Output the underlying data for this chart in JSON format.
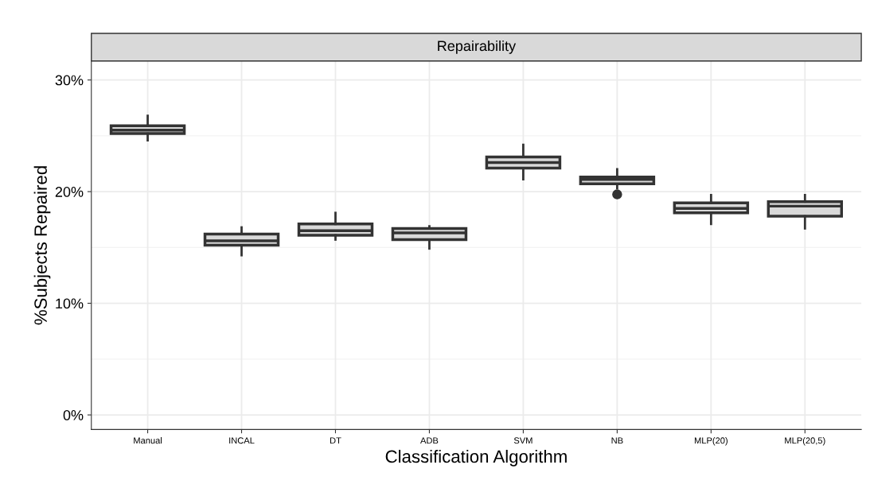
{
  "chart_data": {
    "type": "box",
    "title": "Repairability",
    "xlabel": "Classification Algorithm",
    "ylabel": "%Subjects Repaired",
    "categories": [
      "Manual",
      "INCAL",
      "DT",
      "ADB",
      "SVM",
      "NB",
      "MLP(20)",
      "MLP(20,5)"
    ],
    "boxes": [
      {
        "low": 24.6,
        "q1": 25.2,
        "median": 25.5,
        "q3": 25.9,
        "high": 26.8
      },
      {
        "low": 14.3,
        "q1": 15.2,
        "median": 15.6,
        "q3": 16.2,
        "high": 16.8
      },
      {
        "low": 15.7,
        "q1": 16.1,
        "median": 16.5,
        "q3": 17.1,
        "high": 18.1
      },
      {
        "low": 14.9,
        "q1": 15.7,
        "median": 16.3,
        "q3": 16.7,
        "high": 16.9
      },
      {
        "low": 21.1,
        "q1": 22.1,
        "median": 22.6,
        "q3": 23.1,
        "high": 24.2
      },
      {
        "low": 20.3,
        "q1": 20.7,
        "median": 21.1,
        "q3": 21.3,
        "high": 22.0,
        "outliers": [
          19.75
        ]
      },
      {
        "low": 17.1,
        "q1": 18.1,
        "median": 18.5,
        "q3": 19.0,
        "high": 19.7
      },
      {
        "low": 16.7,
        "q1": 17.8,
        "median": 18.7,
        "q3": 19.1,
        "high": 19.7
      }
    ],
    "color": "#d9d9d9",
    "ylim": [
      -1.3,
      31.7
    ],
    "yticks": [
      {
        "value": 0,
        "label": "0%"
      },
      {
        "value": 10,
        "label": "10%"
      },
      {
        "value": 20,
        "label": "20%"
      },
      {
        "value": 30,
        "label": "30%"
      }
    ],
    "grid": true
  }
}
